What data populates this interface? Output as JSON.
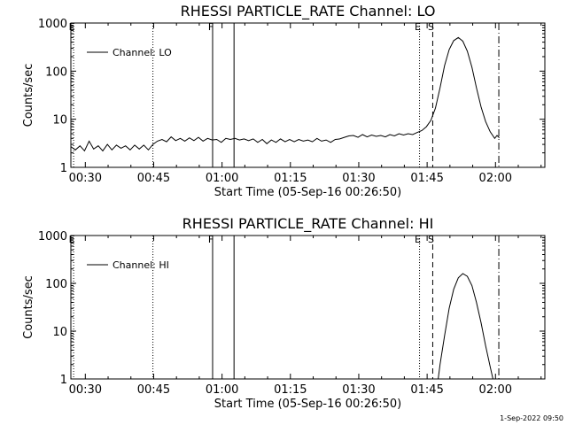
{
  "footer": {
    "timestamp": "1-Sep-2022 09:50"
  },
  "chart_data": [
    {
      "type": "line",
      "title": "RHESSI PARTICLE_RATE Channel: LO",
      "xlabel": "Start Time (05-Sep-16 00:26:50)",
      "ylabel": "Counts/sec",
      "legend": {
        "label": "Channel: LO",
        "position": "top-left"
      },
      "x_unit": "minutes since 00:26:50",
      "xlim": [
        0,
        104
      ],
      "ylim": [
        1,
        1000
      ],
      "yscale": "log",
      "x_ticks": [
        {
          "x": 3.17,
          "label": "00:30"
        },
        {
          "x": 18.17,
          "label": "00:45"
        },
        {
          "x": 33.17,
          "label": "01:00"
        },
        {
          "x": 48.17,
          "label": "01:15"
        },
        {
          "x": 63.17,
          "label": "01:30"
        },
        {
          "x": 78.17,
          "label": "01:45"
        },
        {
          "x": 93.17,
          "label": "02:00"
        }
      ],
      "y_ticks": [
        {
          "y": 1,
          "label": "1"
        },
        {
          "y": 10,
          "label": "10"
        },
        {
          "y": 100,
          "label": "100"
        },
        {
          "y": 1000,
          "label": "1000"
        }
      ],
      "markers": [
        {
          "x": 0.6,
          "style": "dotted",
          "label": "E"
        },
        {
          "x": 18.0,
          "style": "dotted",
          "label": ""
        },
        {
          "x": 31.1,
          "style": "solid",
          "label": "F"
        },
        {
          "x": 35.8,
          "style": "solid",
          "label": ""
        },
        {
          "x": 76.5,
          "style": "dotted",
          "label": "E"
        },
        {
          "x": 79.4,
          "style": "dashed",
          "label": "S"
        },
        {
          "x": 93.9,
          "style": "dashdot",
          "label": ""
        }
      ],
      "series": [
        {
          "name": "Channel: LO",
          "x": [
            0,
            1,
            2,
            3,
            4,
            5,
            6,
            7,
            8,
            9,
            10,
            11,
            12,
            13,
            14,
            15,
            16,
            17,
            18,
            19,
            20,
            21,
            22,
            23,
            24,
            25,
            26,
            27,
            28,
            29,
            30,
            31,
            32,
            33,
            34,
            35,
            36,
            37,
            38,
            39,
            40,
            41,
            42,
            43,
            44,
            45,
            46,
            47,
            48,
            49,
            50,
            51,
            52,
            53,
            54,
            55,
            56,
            57,
            58,
            59,
            60,
            61,
            62,
            63,
            64,
            65,
            66,
            67,
            68,
            69,
            70,
            71,
            72,
            73,
            74,
            75,
            76,
            77,
            78,
            79,
            80,
            81,
            82,
            83,
            84,
            85,
            86,
            87,
            88,
            89,
            90,
            91,
            92,
            93,
            93.5,
            94
          ],
          "values": [
            2.7,
            2.3,
            2.8,
            2.2,
            3.5,
            2.4,
            2.8,
            2.2,
            3.0,
            2.3,
            2.9,
            2.5,
            2.8,
            2.3,
            2.9,
            2.4,
            2.9,
            2.3,
            3.0,
            3.5,
            3.8,
            3.4,
            4.3,
            3.6,
            4.0,
            3.5,
            4.1,
            3.6,
            4.2,
            3.5,
            4.0,
            3.7,
            3.8,
            3.3,
            4.0,
            3.8,
            4.0,
            3.7,
            3.9,
            3.6,
            3.9,
            3.3,
            3.8,
            3.1,
            3.7,
            3.3,
            3.9,
            3.4,
            3.8,
            3.4,
            3.8,
            3.5,
            3.7,
            3.4,
            4.0,
            3.5,
            3.7,
            3.3,
            3.8,
            3.9,
            4.2,
            4.5,
            4.6,
            4.2,
            4.8,
            4.3,
            4.7,
            4.4,
            4.6,
            4.3,
            4.8,
            4.5,
            5.0,
            4.7,
            5.0,
            4.8,
            5.3,
            5.8,
            7.0,
            9.5,
            17,
            45,
            130,
            280,
            430,
            500,
            420,
            260,
            120,
            45,
            18,
            9,
            5.5,
            4.0,
            4.6,
            4.1
          ]
        }
      ]
    },
    {
      "type": "line",
      "title": "RHESSI PARTICLE_RATE Channel: HI",
      "xlabel": "Start Time (05-Sep-16 00:26:50)",
      "ylabel": "Counts/sec",
      "legend": {
        "label": "Channel: HI",
        "position": "top-left"
      },
      "x_unit": "minutes since 00:26:50",
      "xlim": [
        0,
        104
      ],
      "ylim": [
        1,
        1000
      ],
      "yscale": "log",
      "x_ticks": [
        {
          "x": 3.17,
          "label": "00:30"
        },
        {
          "x": 18.17,
          "label": "00:45"
        },
        {
          "x": 33.17,
          "label": "01:00"
        },
        {
          "x": 48.17,
          "label": "01:15"
        },
        {
          "x": 63.17,
          "label": "01:30"
        },
        {
          "x": 78.17,
          "label": "01:45"
        },
        {
          "x": 93.17,
          "label": "02:00"
        }
      ],
      "y_ticks": [
        {
          "y": 1,
          "label": "1"
        },
        {
          "y": 10,
          "label": "10"
        },
        {
          "y": 100,
          "label": "100"
        },
        {
          "y": 1000,
          "label": "1000"
        }
      ],
      "markers": [
        {
          "x": 0.6,
          "style": "dotted",
          "label": "E"
        },
        {
          "x": 18.0,
          "style": "dotted",
          "label": ""
        },
        {
          "x": 31.1,
          "style": "solid",
          "label": "F"
        },
        {
          "x": 35.8,
          "style": "solid",
          "label": ""
        },
        {
          "x": 76.5,
          "style": "dotted",
          "label": "E"
        },
        {
          "x": 79.4,
          "style": "dashed",
          "label": "S"
        },
        {
          "x": 93.9,
          "style": "dashdot",
          "label": ""
        }
      ],
      "series": [
        {
          "name": "Channel: HI",
          "x": [
            80.6,
            81,
            82,
            83,
            84,
            85,
            86,
            87,
            88,
            89,
            90,
            91,
            92,
            92.6
          ],
          "values": [
            1.0,
            2.0,
            8,
            30,
            75,
            130,
            160,
            140,
            90,
            40,
            15,
            5,
            1.8,
            1.0
          ]
        }
      ]
    }
  ]
}
